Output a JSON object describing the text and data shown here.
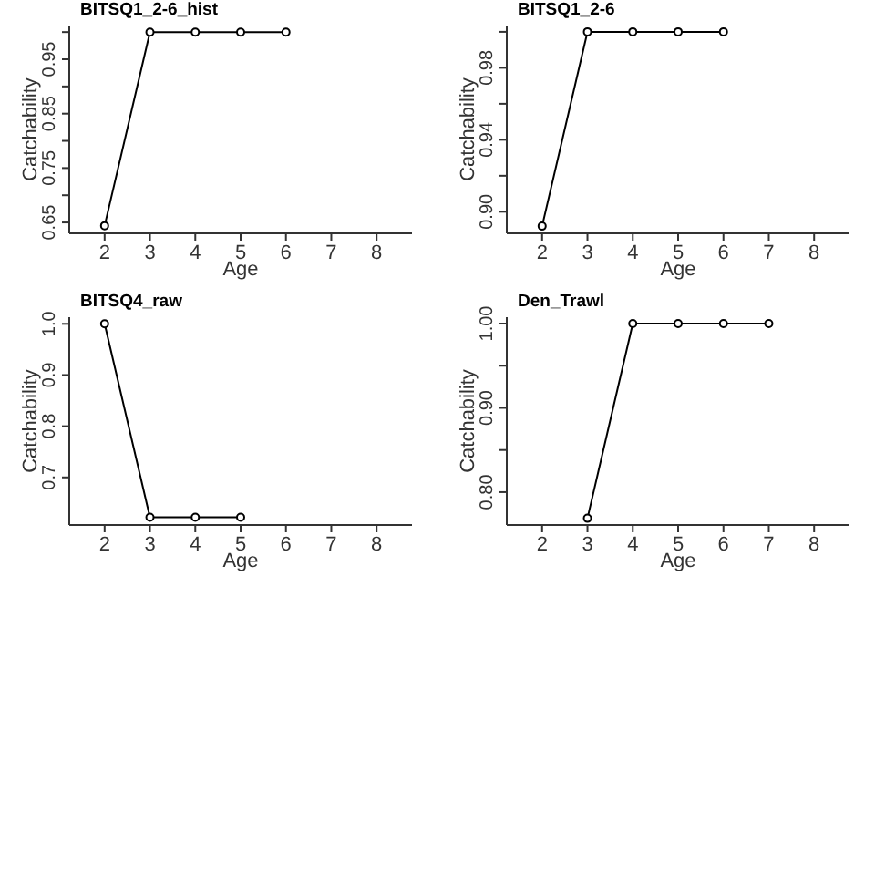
{
  "chart_data": [
    {
      "type": "line",
      "title": "BITSQ1_2-6_hist",
      "xlabel": "Age",
      "ylabel": "Catchability",
      "x": [
        2,
        3,
        4,
        5,
        6
      ],
      "series": [
        {
          "color": "#000000",
          "values": [
            0.644,
            1.0,
            1.0,
            1.0,
            1.0
          ]
        }
      ],
      "xlim": [
        1.22,
        8.78
      ],
      "xticks": [
        2,
        3,
        4,
        5,
        6,
        7,
        8
      ],
      "ylim": [
        0.63,
        1.012
      ],
      "yticks": [
        0.65,
        {
          "value": 0.7,
          "label": null
        },
        0.75,
        {
          "value": 0.8,
          "label": null
        },
        0.85,
        {
          "value": 0.9,
          "label": null
        },
        0.95,
        {
          "value": 1.0,
          "label": null
        }
      ],
      "marker": "circle",
      "grid": false
    },
    {
      "type": "line",
      "title": "BITSQ1_2-6",
      "xlabel": "Age",
      "ylabel": "Catchability",
      "x": [
        2,
        3,
        4,
        5,
        6
      ],
      "series": [
        {
          "color": "#000000",
          "values": [
            0.892,
            1.0,
            1.0,
            1.0,
            1.0
          ]
        }
      ],
      "xlim": [
        1.22,
        8.78
      ],
      "xticks": [
        2,
        3,
        4,
        5,
        6,
        7,
        8
      ],
      "ylim": [
        0.888,
        1.0035
      ],
      "yticks": [
        {
          "value": 0.9,
          "label": "0.90"
        },
        {
          "value": 0.92,
          "label": null
        },
        0.94,
        {
          "value": 0.96,
          "label": null
        },
        0.98,
        {
          "value": 1.0,
          "label": null
        }
      ],
      "marker": "circle",
      "grid": false
    },
    {
      "type": "line",
      "title": "BITSQ4_raw",
      "xlabel": "Age",
      "ylabel": "Catchability",
      "x": [
        2,
        3,
        4,
        5
      ],
      "series": [
        {
          "color": "#000000",
          "values": [
            1.0,
            0.622,
            0.622,
            0.622
          ]
        }
      ],
      "xlim": [
        1.22,
        8.78
      ],
      "xticks": [
        2,
        3,
        4,
        5,
        6,
        7,
        8
      ],
      "ylim": [
        0.607,
        1.013
      ],
      "yticks": [
        0.7,
        0.8,
        0.9,
        {
          "value": 1.0,
          "label": "1.0"
        }
      ],
      "marker": "circle",
      "grid": false
    },
    {
      "type": "line",
      "title": "Den_Trawl",
      "xlabel": "Age",
      "ylabel": "Catchability",
      "x": [
        3,
        4,
        5,
        6,
        7
      ],
      "series": [
        {
          "color": "#000000",
          "values": [
            0.769,
            1.0,
            1.0,
            1.0,
            1.0
          ]
        }
      ],
      "xlim": [
        1.22,
        8.78
      ],
      "xticks": [
        2,
        3,
        4,
        5,
        6,
        7,
        8
      ],
      "ylim": [
        0.761,
        1.0076
      ],
      "yticks": [
        {
          "value": 0.8,
          "label": "0.80"
        },
        {
          "value": 0.85,
          "label": null
        },
        {
          "value": 0.9,
          "label": "0.90"
        },
        {
          "value": 0.95,
          "label": null
        },
        {
          "value": 1.0,
          "label": "1.00"
        }
      ],
      "marker": "circle",
      "grid": false
    }
  ]
}
